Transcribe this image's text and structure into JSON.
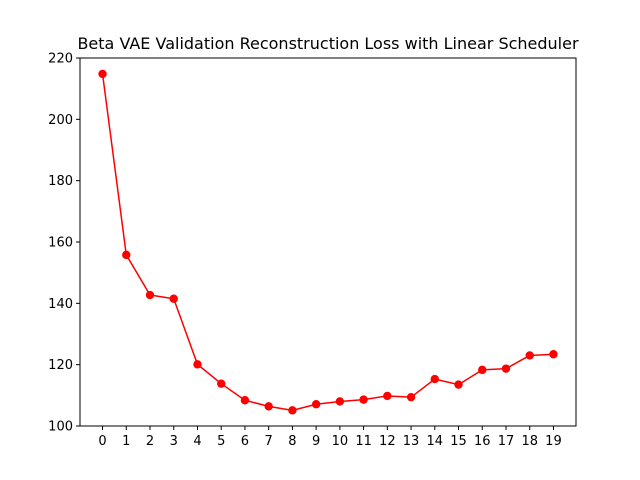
{
  "chart_data": {
    "type": "line",
    "title": "Beta VAE Validation Reconstruction Loss with Linear Scheduler",
    "xlabel": "",
    "ylabel": "",
    "x": [
      0,
      1,
      2,
      3,
      4,
      5,
      6,
      7,
      8,
      9,
      10,
      11,
      12,
      13,
      14,
      15,
      16,
      17,
      18,
      19
    ],
    "series": [
      {
        "values": [
          214.8,
          155.8,
          142.7,
          141.5,
          120.1,
          113.8,
          108.4,
          106.4,
          105.1,
          107.1,
          108.0,
          108.6,
          109.8,
          109.4,
          115.3,
          113.5,
          118.3,
          118.7,
          123.0,
          123.4
        ],
        "color": "#ff0000",
        "marker": "circle"
      }
    ],
    "xlim": [
      -0.95,
      19.95
    ],
    "ylim": [
      100,
      220
    ],
    "xticks": [
      "0",
      "1",
      "2",
      "3",
      "4",
      "5",
      "6",
      "7",
      "8",
      "9",
      "10",
      "11",
      "12",
      "13",
      "14",
      "15",
      "16",
      "17",
      "18",
      "19"
    ],
    "yticks": [
      "100",
      "120",
      "140",
      "160",
      "180",
      "200",
      "220"
    ],
    "grid": false,
    "legend": "none"
  }
}
